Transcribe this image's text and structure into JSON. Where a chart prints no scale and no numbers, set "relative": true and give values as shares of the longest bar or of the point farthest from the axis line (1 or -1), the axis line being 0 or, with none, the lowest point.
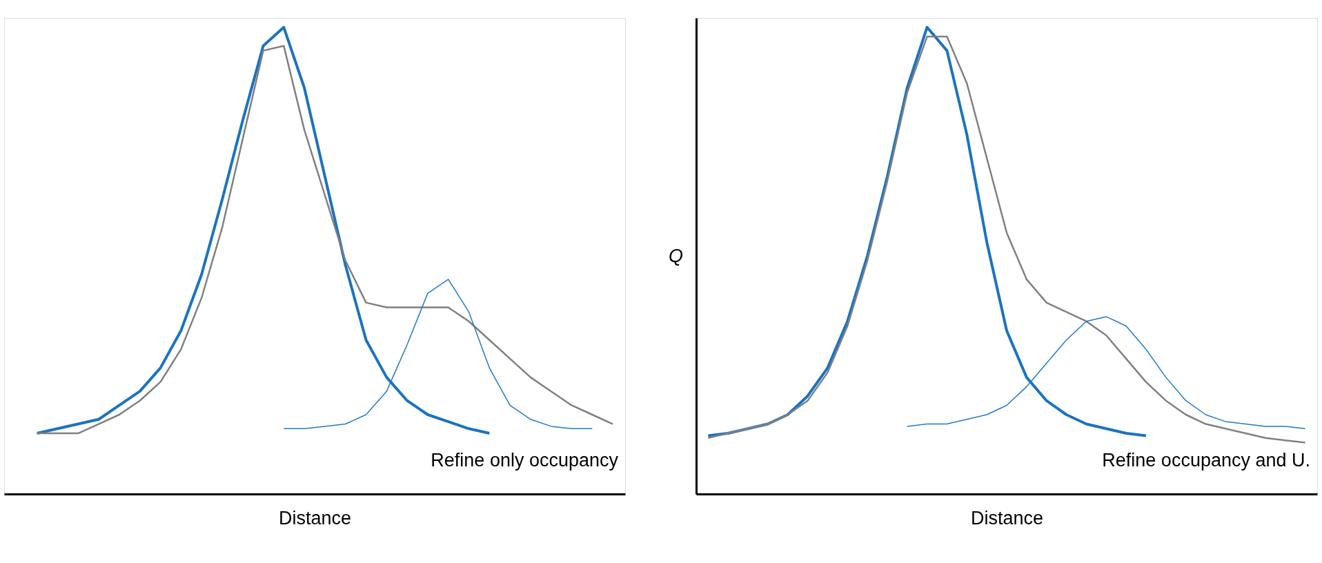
{
  "chart_data": [
    {
      "type": "line",
      "relative": true,
      "xlabel": "Distance",
      "annotations": [
        "Refine only occupancy"
      ],
      "grid": false,
      "categories": [
        null,
        null,
        null,
        null,
        null,
        null,
        null,
        null,
        null,
        null,
        null,
        null,
        null,
        null,
        null,
        null,
        null,
        null,
        null,
        null,
        null,
        null,
        null,
        null,
        null,
        null,
        null,
        null,
        null,
        null
      ],
      "series": [
        {
          "color": "#1a73c2",
          "values": [
            null,
            0.13,
            0.14,
            0.15,
            0.16,
            0.19,
            0.22,
            0.27,
            0.35,
            0.47,
            0.63,
            0.8,
            0.96,
            1.0,
            0.87,
            0.68,
            0.49,
            0.33,
            0.25,
            0.2,
            0.17,
            0.155,
            0.14,
            0.13,
            null,
            null,
            null,
            null,
            null,
            null
          ]
        },
        {
          "color": "#808080",
          "values": [
            null,
            0.13,
            0.13,
            0.13,
            0.15,
            0.17,
            0.2,
            0.24,
            0.31,
            0.42,
            0.57,
            0.76,
            0.95,
            0.96,
            0.78,
            0.64,
            0.5,
            0.41,
            0.4,
            0.4,
            0.4,
            0.4,
            0.37,
            0.33,
            0.29,
            0.25,
            0.22,
            0.19,
            0.17,
            0.15
          ]
        },
        {
          "color": "#1f7ac9",
          "values": [
            null,
            null,
            null,
            null,
            null,
            null,
            null,
            null,
            null,
            null,
            null,
            null,
            null,
            0.14,
            0.14,
            0.145,
            0.15,
            0.17,
            0.22,
            0.32,
            0.43,
            0.46,
            0.39,
            0.27,
            0.19,
            0.16,
            0.145,
            0.14,
            0.14,
            null
          ]
        }
      ]
    },
    {
      "type": "line",
      "relative": true,
      "xlabel": "Distance",
      "ylabel": "Q",
      "annotations": [
        "Refine occupancy and U."
      ],
      "grid": false,
      "categories": [
        null,
        null,
        null,
        null,
        null,
        null,
        null,
        null,
        null,
        null,
        null,
        null,
        null,
        null,
        null,
        null,
        null,
        null,
        null,
        null,
        null,
        null,
        null,
        null,
        null,
        null,
        null,
        null,
        null,
        null,
        null
      ],
      "series": [
        {
          "color": "#1a73c2",
          "values": [
            0.125,
            0.13,
            0.14,
            0.15,
            0.17,
            0.21,
            0.27,
            0.37,
            0.51,
            0.68,
            0.87,
            1.0,
            0.95,
            0.77,
            0.54,
            0.35,
            0.25,
            0.2,
            0.17,
            0.15,
            0.14,
            0.13,
            0.125,
            null,
            null,
            null,
            null,
            null,
            null,
            null,
            null
          ]
        },
        {
          "color": "#808080",
          "values": [
            0.12,
            0.13,
            0.14,
            0.15,
            0.17,
            0.2,
            0.26,
            0.36,
            0.5,
            0.67,
            0.86,
            0.98,
            0.98,
            0.88,
            0.72,
            0.56,
            0.46,
            0.41,
            0.39,
            0.37,
            0.34,
            0.29,
            0.24,
            0.2,
            0.17,
            0.15,
            0.14,
            0.13,
            0.12,
            0.115,
            0.11
          ]
        },
        {
          "color": "#1f7ac9",
          "values": [
            null,
            null,
            null,
            null,
            null,
            null,
            null,
            null,
            null,
            null,
            0.145,
            0.15,
            0.15,
            0.16,
            0.17,
            0.19,
            0.23,
            0.28,
            0.33,
            0.37,
            0.38,
            0.36,
            0.31,
            0.25,
            0.2,
            0.17,
            0.155,
            0.15,
            0.145,
            0.145,
            0.14
          ]
        }
      ]
    }
  ]
}
